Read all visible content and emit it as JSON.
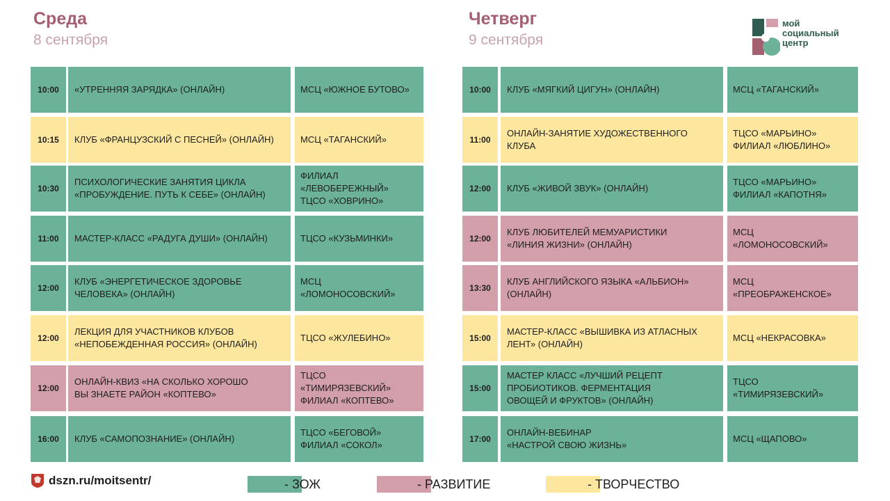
{
  "colors": {
    "zozh": "#6cb299",
    "razvitie": "#d29ea9",
    "tvorchestvo": "#fde69e",
    "title": "#a45f70"
  },
  "wednesday": {
    "title": "Среда",
    "date": "8 сентября",
    "rows": [
      {
        "time": "10:00",
        "event": "«УТРЕННЯЯ  ЗАРЯДКА» (ОНЛАЙН)",
        "place": "МСЦ «ЮЖНОЕ  БУТОВО»",
        "category": "zozh"
      },
      {
        "time": "10:15",
        "event": "КЛУБ «ФРАНЦУЗСКИЙ С ПЕСНЕЙ» (ОНЛАЙН)",
        "place": "МСЦ «ТАГАНСКИЙ»",
        "category": "tvorchestvo"
      },
      {
        "time": "10:30",
        "event": "ПСИХОЛОГИЧЕСКИЕ  ЗАНЯТИЯ  ЦИКЛА\n«ПРОБУЖДЕНИЕ.  ПУТЬ  К СЕБЕ»  (ОНЛАЙН)",
        "place": "ФИЛИАЛ\n«ЛЕВОБЕРЕЖНЫЙ»\nТЦСО  «ХОВРИНО»",
        "category": "zozh"
      },
      {
        "time": "11:00",
        "event": "МАСТЕР-КЛАСС  «РАДУГА ДУШИ»  (ОНЛАЙН)",
        "place": "ТЦСО  «КУЗЬМИНКИ»",
        "category": "zozh"
      },
      {
        "time": "12:00",
        "event": "КЛУБ  «ЭНЕРГЕТИЧЕСКОЕ  ЗДОРОВЬЕ\nЧЕЛОВЕКА» (ОНЛАЙН)",
        "place": "МСЦ\n«ЛОМОНОСОВСКИЙ»",
        "category": "zozh"
      },
      {
        "time": "12:00",
        "event": "ЛЕКЦИЯ ДЛЯ УЧАСТНИКОВ  КЛУБОВ\n«НЕПОБЕЖДЕННАЯ  РОССИЯ»  (ОНЛАЙН)",
        "place": "ТЦСО  «ЖУЛЕБИНО»",
        "category": "tvorchestvo"
      },
      {
        "time": "12:00",
        "event": "ОНЛАЙН-КВИЗ  «НА СКОЛЬКО ХОРОШО\nВЫ ЗНАЕТЕ РАЙОН «КОПТЕВО»",
        "place": "ТЦСО\n«ТИМИРЯЗЕВСКИЙ»\nФИЛИАЛ «КОПТЕВО»",
        "category": "razvitie"
      },
      {
        "time": "16:00",
        "event": "КЛУБ  «САМОПОЗНАНИЕ»  (ОНЛАЙН)",
        "place": "ТЦСО  «БЕГОВОЙ»\nФИЛИАЛ «СОКОЛ»",
        "category": "zozh"
      }
    ]
  },
  "thursday": {
    "title": "Четверг",
    "date": "9 сентября",
    "rows": [
      {
        "time": "10:00",
        "event": "КЛУБ «МЯГКИЙ ЦИГУН» (ОНЛАЙН)",
        "place": "МСЦ «ТАГАНСКИЙ»",
        "category": "zozh"
      },
      {
        "time": "11:00",
        "event": "ОНЛАЙН-ЗАНЯТИЕ  ХУДОЖЕСТВЕННОГО\nКЛУБА",
        "place": "ТЦСО  «МАРЬИНО»\nФИЛИАЛ «ЛЮБЛИНО»",
        "category": "tvorchestvo"
      },
      {
        "time": "12:00",
        "event": "КЛУБ «ЖИВОЙ ЗВУК» (ОНЛАЙН)",
        "place": "ТЦСО  «МАРЬИНО»\nФИЛИАЛ «КАПОТНЯ»",
        "category": "zozh"
      },
      {
        "time": "12:00",
        "event": "КЛУБ ЛЮБИТЕЛЕЙ МЕМУАРИСТИКИ\n«ЛИНИЯ ЖИЗНИ»  (ОНЛАЙН)",
        "place": "МСЦ\n«ЛОМОНОСОВСКИЙ»",
        "category": "razvitie"
      },
      {
        "time": "13:30",
        "event": "КЛУБ АНГЛИЙСКОГО ЯЗЫКА «АЛЬБИОН»\n(ОНЛАЙН)",
        "place": "МСЦ\n«ПРЕОБРАЖЕНСКОЕ»",
        "category": "razvitie"
      },
      {
        "time": "15:00",
        "event": "МАСТЕР-КЛАСС  «ВЫШИВКА ИЗ АТЛАСНЫХ\nЛЕНТ» (ОНЛАЙН)",
        "place": "МСЦ «НЕКРАСОВКА»",
        "category": "tvorchestvo"
      },
      {
        "time": "15:00",
        "event": "МАСТЕР КЛАСС «ЛУЧШИЙ РЕЦЕПТ\nПРОБИОТИКОВ.  ФЕРМЕНТАЦИЯ\nОВОЩЕЙ И ФРУКТОВ» (ОНЛАЙН)",
        "place": "ТЦСО\n«ТИМИРЯЗЕВСКИЙ»",
        "category": "zozh"
      },
      {
        "time": "17:00",
        "event": "ОНЛАЙН-ВЕБИНАР\n«НАСТРОЙ СВОЮ ЖИЗНЬ»",
        "place": "МСЦ «ЩАПОВО»",
        "category": "zozh"
      }
    ]
  },
  "logo": {
    "text": "мой\nсоциальный\nцентр"
  },
  "footer": {
    "site": "dszn.ru/moitsentr/"
  },
  "legend": [
    {
      "key": "zozh",
      "label": "- ЗОЖ"
    },
    {
      "key": "razvitie",
      "label": "- РАЗВИТИЕ"
    },
    {
      "key": "tvorchestvo",
      "label": "- ТВОРЧЕСТВО"
    }
  ]
}
